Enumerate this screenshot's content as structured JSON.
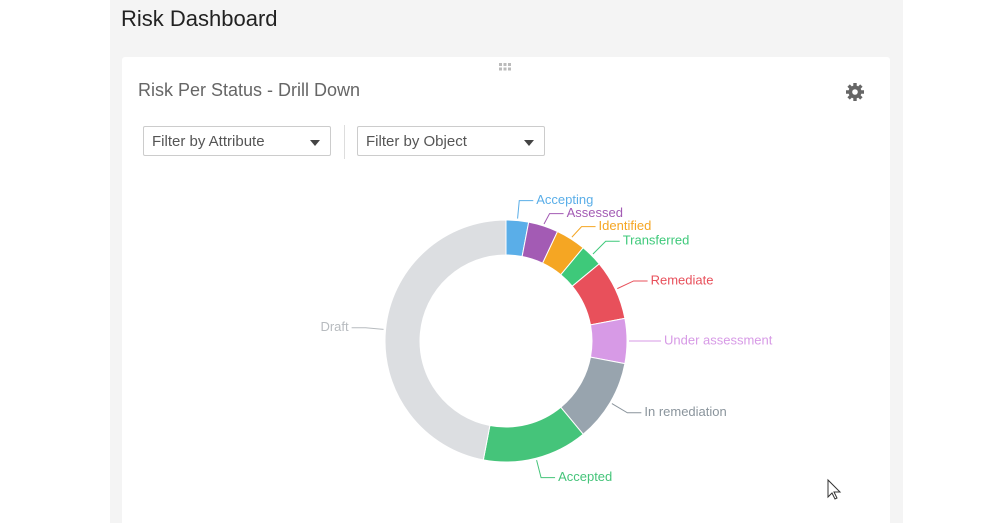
{
  "header": {
    "title": "Risk Dashboard"
  },
  "widget": {
    "title": "Risk Per Status - Drill Down",
    "filters": [
      "Filter by Attribute",
      "Filter by Object"
    ]
  },
  "chart_data": {
    "type": "donut",
    "categories": [
      "Accepting",
      "Assessed",
      "Identified",
      "Transferred",
      "Remediate",
      "Under assessment",
      "In remediation",
      "Accepted",
      "Draft"
    ],
    "values": [
      3,
      4,
      4,
      3,
      8,
      6,
      11,
      14,
      47
    ],
    "colors": [
      "#5aaee8",
      "#a35bb4",
      "#f5a623",
      "#3ec97a",
      "#e8505b",
      "#d79ae6",
      "#98a4ae",
      "#45c47a",
      "#dcdee1"
    ],
    "label_colors": [
      "#5aaee8",
      "#a35bb4",
      "#f5a623",
      "#3ec97a",
      "#e8505b",
      "#d79ae6",
      "#8a949c",
      "#45c47a",
      "#b7bbbf"
    ]
  }
}
